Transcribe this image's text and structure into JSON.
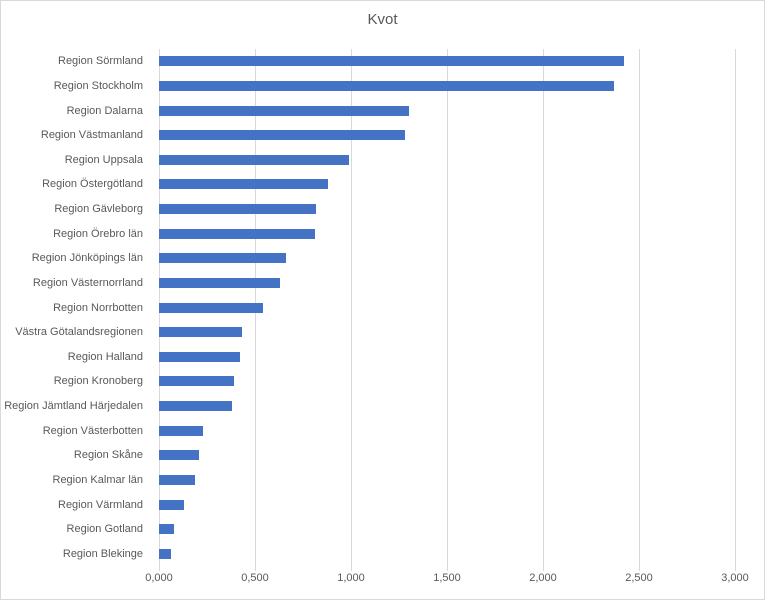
{
  "chart_data": {
    "type": "bar",
    "orientation": "horizontal",
    "title": "Kvot",
    "categories": [
      "Region Sörmland",
      "Region Stockholm",
      "Region Dalarna",
      "Region Västmanland",
      "Region Uppsala",
      "Region Östergötland",
      "Region Gävleborg",
      "Region Örebro län",
      "Region Jönköpings län",
      "Region Västernorrland",
      "Region Norrbotten",
      "Västra Götalandsregionen",
      "Region Halland",
      "Region Kronoberg",
      "Region Jämtland Härjedalen",
      "Region Västerbotten",
      "Region Skåne",
      "Region Kalmar län",
      "Region Värmland",
      "Region Gotland",
      "Region Blekinge"
    ],
    "values": [
      2.42,
      2.37,
      1.3,
      1.28,
      0.99,
      0.88,
      0.82,
      0.81,
      0.66,
      0.63,
      0.54,
      0.43,
      0.42,
      0.39,
      0.38,
      0.23,
      0.21,
      0.19,
      0.13,
      0.08,
      0.06
    ],
    "xlabel": "",
    "ylabel": "",
    "xlim": [
      0,
      3
    ],
    "x_tick_interval": 0.5,
    "x_tick_labels": [
      "0,000",
      "0,500",
      "1,000",
      "1,500",
      "2,000",
      "2,500",
      "3,000"
    ],
    "decimal_separator": ",",
    "grid": true,
    "legend_position": "none",
    "colors": {
      "bar": "#4472C4",
      "gridline": "#D9D9D9",
      "text": "#595959",
      "background": "#FFFFFF",
      "chart_border": "#D9D9D9"
    }
  }
}
